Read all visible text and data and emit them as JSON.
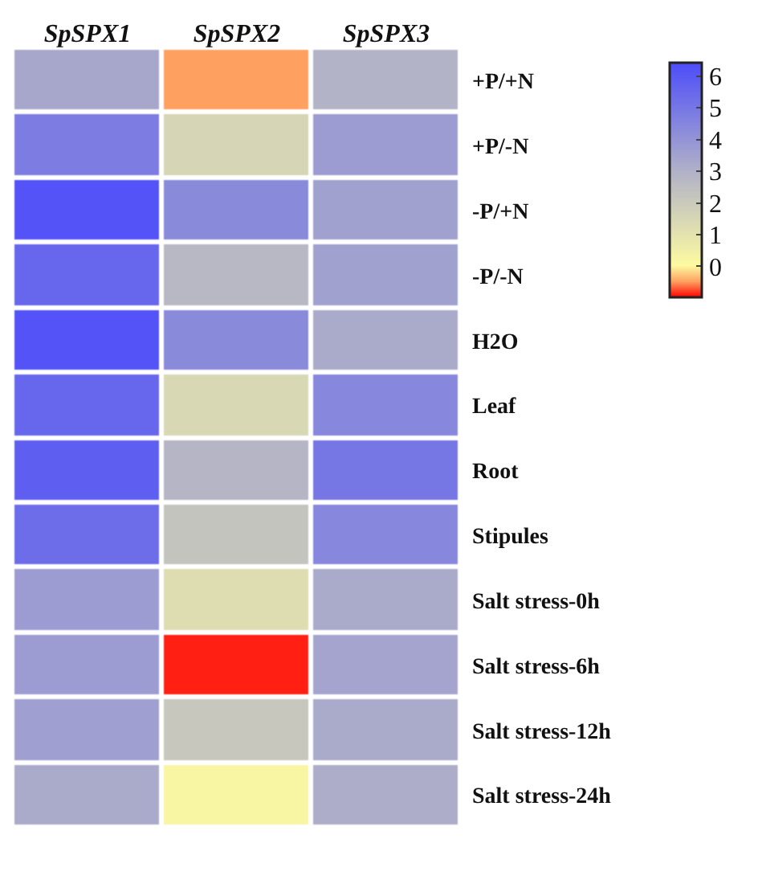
{
  "chart_data": {
    "type": "heatmap",
    "categories": [
      "SpSPX1",
      "SpSPX2",
      "SpSPX3"
    ],
    "y_categories": [
      "+P/+N",
      "+P/-N",
      "-P/+N",
      "-P/-N",
      "H2O",
      "Leaf",
      "Root",
      "Stipules",
      "Salt stress-0h",
      "Salt stress-6h",
      "Salt stress-12h",
      "Salt stress-24h"
    ],
    "cells": [
      [
        3.3,
        -0.5,
        2.9
      ],
      [
        4.8,
        1.5,
        3.7
      ],
      [
        6.2,
        4.3,
        3.5
      ],
      [
        5.5,
        2.7,
        3.5
      ],
      [
        6.2,
        4.3,
        3.2
      ],
      [
        5.5,
        1.4,
        4.4
      ],
      [
        5.8,
        2.8,
        5.0
      ],
      [
        5.3,
        2.2,
        4.4
      ],
      [
        3.7,
        1.2,
        3.2
      ],
      [
        3.7,
        -0.9,
        3.4
      ],
      [
        3.6,
        2.1,
        3.2
      ],
      [
        3.2,
        0.2,
        3.1
      ]
    ],
    "clim": [
      -1.0,
      6.4
    ],
    "cticks": [
      0,
      1,
      2,
      3,
      4,
      5,
      6
    ]
  }
}
